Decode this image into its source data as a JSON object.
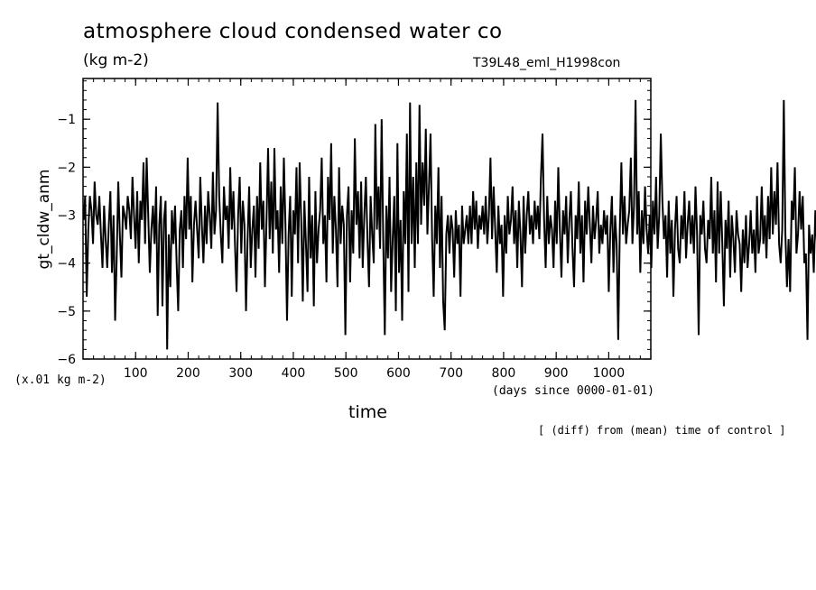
{
  "chart_data": {
    "type": "line",
    "title": "atmosphere cloud condensed water co",
    "subtitle": "(kg m-2)",
    "run_label": "T39L48_eml_H1998con",
    "ylabel": "gt_cldw_anm",
    "yunit": "(x.01 kg m-2)",
    "xlabel": "time",
    "xunit": "(days since 0000-01-01)",
    "note": "[ (diff) from (mean) time of control ]",
    "xlim": [
      0,
      1080
    ],
    "ylim": [
      -6,
      -0.15
    ],
    "xticks": [
      100,
      200,
      300,
      400,
      500,
      600,
      700,
      800,
      900,
      1000
    ],
    "yticks": [
      -6,
      -5,
      -4,
      -3,
      -2,
      -1
    ],
    "series": [
      {
        "color": "#000000",
        "x0": 1,
        "dx": 3,
        "values": [
          -3.1,
          -2.6,
          -4.7,
          -3.3,
          -2.6,
          -2.9,
          -3.6,
          -2.3,
          -3.0,
          -3.2,
          -2.6,
          -3.4,
          -4.1,
          -2.8,
          -3.5,
          -4.1,
          -3.2,
          -2.5,
          -4.2,
          -3.0,
          -5.2,
          -3.9,
          -2.3,
          -3.4,
          -4.3,
          -2.8,
          -3.0,
          -3.3,
          -2.6,
          -2.9,
          -3.5,
          -2.2,
          -3.0,
          -3.7,
          -2.5,
          -4.0,
          -2.7,
          -3.1,
          -1.9,
          -3.6,
          -1.8,
          -3.0,
          -4.2,
          -3.3,
          -2.8,
          -3.6,
          -2.4,
          -5.1,
          -3.2,
          -2.6,
          -4.9,
          -3.1,
          -2.7,
          -5.8,
          -3.4,
          -4.5,
          -2.9,
          -3.6,
          -2.8,
          -4.0,
          -5.0,
          -3.3,
          -2.9,
          -4.1,
          -2.6,
          -3.5,
          -1.8,
          -3.3,
          -2.6,
          -4.4,
          -3.2,
          -2.7,
          -3.3,
          -3.9,
          -2.2,
          -3.2,
          -4.0,
          -2.8,
          -3.6,
          -2.5,
          -3.0,
          -3.7,
          -2.1,
          -3.4,
          -2.9,
          -0.65,
          -2.6,
          -3.4,
          -4.0,
          -2.4,
          -3.1,
          -2.8,
          -3.7,
          -2.0,
          -3.3,
          -2.5,
          -3.6,
          -4.6,
          -3.0,
          -2.2,
          -3.8,
          -2.7,
          -3.2,
          -5.0,
          -3.5,
          -2.4,
          -4.1,
          -3.3,
          -2.8,
          -4.3,
          -2.6,
          -3.7,
          -1.9,
          -3.3,
          -2.7,
          -4.5,
          -3.1,
          -1.6,
          -3.5,
          -2.3,
          -3.8,
          -1.6,
          -3.3,
          -2.9,
          -4.2,
          -2.4,
          -3.6,
          -1.8,
          -3.2,
          -5.2,
          -3.4,
          -2.6,
          -4.7,
          -2.9,
          -3.4,
          -2.0,
          -4.0,
          -1.9,
          -3.1,
          -4.8,
          -2.7,
          -3.6,
          -4.6,
          -2.2,
          -3.9,
          -3.0,
          -4.9,
          -2.5,
          -4.0,
          -3.3,
          -2.9,
          -1.8,
          -3.6,
          -3.0,
          -4.4,
          -2.2,
          -3.1,
          -1.5,
          -3.8,
          -2.6,
          -3.3,
          -4.5,
          -2.0,
          -3.6,
          -2.8,
          -3.2,
          -5.5,
          -3.0,
          -2.4,
          -4.4,
          -2.9,
          -3.8,
          -1.4,
          -3.2,
          -2.5,
          -3.9,
          -2.3,
          -4.1,
          -3.0,
          -2.2,
          -3.5,
          -4.5,
          -2.6,
          -3.4,
          -4.0,
          -1.1,
          -3.3,
          -2.4,
          -3.7,
          -1.0,
          -3.5,
          -5.5,
          -2.8,
          -3.9,
          -2.2,
          -4.6,
          -3.5,
          -2.6,
          -5.0,
          -1.5,
          -4.2,
          -3.1,
          -5.2,
          -2.5,
          -3.6,
          -1.3,
          -4.6,
          -0.65,
          -3.6,
          -2.2,
          -4.1,
          -1.9,
          -3.6,
          -0.7,
          -3.2,
          -1.9,
          -2.8,
          -1.2,
          -3.4,
          -2.4,
          -1.3,
          -3.5,
          -4.7,
          -2.8,
          -3.6,
          -2.0,
          -4.1,
          -2.6,
          -4.8,
          -5.4,
          -3.4,
          -3.0,
          -3.8,
          -3.0,
          -3.3,
          -4.3,
          -2.9,
          -3.6,
          -3.2,
          -4.7,
          -2.8,
          -3.6,
          -3.3,
          -3.0,
          -3.6,
          -2.8,
          -3.6,
          -2.5,
          -3.3,
          -2.7,
          -3.7,
          -3.0,
          -3.3,
          -2.8,
          -3.4,
          -2.6,
          -3.6,
          -3.0,
          -1.8,
          -3.5,
          -2.4,
          -3.3,
          -4.2,
          -2.8,
          -3.6,
          -3.2,
          -4.7,
          -3.0,
          -3.8,
          -2.6,
          -3.4,
          -3.1,
          -2.4,
          -3.6,
          -2.9,
          -4.1,
          -2.7,
          -3.4,
          -4.5,
          -2.6,
          -3.8,
          -3.0,
          -2.5,
          -3.4,
          -3.0,
          -3.6,
          -2.7,
          -3.3,
          -2.8,
          -3.5,
          -2.2,
          -1.3,
          -3.1,
          -4.1,
          -2.6,
          -3.6,
          -3.0,
          -3.3,
          -4.1,
          -2.7,
          -3.6,
          -2.0,
          -3.3,
          -4.3,
          -2.9,
          -3.4,
          -2.6,
          -4.0,
          -3.1,
          -2.5,
          -3.7,
          -4.5,
          -3.0,
          -3.5,
          -2.3,
          -3.8,
          -3.0,
          -4.4,
          -2.7,
          -3.4,
          -2.4,
          -3.2,
          -4.0,
          -2.8,
          -3.5,
          -3.1,
          -2.5,
          -3.8,
          -3.2,
          -3.6,
          -2.9,
          -3.4,
          -3.0,
          -4.6,
          -3.3,
          -2.6,
          -4.2,
          -3.0,
          -3.6,
          -5.6,
          -3.3,
          -1.9,
          -3.4,
          -2.6,
          -3.6,
          -3.2,
          -2.9,
          -1.8,
          -3.6,
          -2.8,
          -0.6,
          -3.4,
          -2.5,
          -4.2,
          -2.9,
          -3.6,
          -2.4,
          -3.3,
          -3.8,
          -3.0,
          -4.1,
          -2.7,
          -3.4,
          -2.2,
          -3.7,
          -3.0,
          -1.3,
          -2.7,
          -3.5,
          -3.0,
          -4.3,
          -2.7,
          -3.8,
          -3.1,
          -4.7,
          -3.3,
          -2.6,
          -3.7,
          -4.0,
          -3.0,
          -3.5,
          -2.5,
          -3.9,
          -3.2,
          -2.7,
          -3.6,
          -3.0,
          -3.8,
          -2.4,
          -3.4,
          -5.5,
          -3.0,
          -3.4,
          -2.7,
          -3.7,
          -4.0,
          -3.1,
          -3.5,
          -2.2,
          -3.8,
          -2.9,
          -4.4,
          -2.3,
          -3.8,
          -2.5,
          -3.6,
          -4.9,
          -3.1,
          -3.7,
          -2.7,
          -4.3,
          -3.0,
          -3.5,
          -4.2,
          -2.9,
          -3.4,
          -3.6,
          -4.6,
          -3.3,
          -4.0,
          -3.0,
          -4.1,
          -3.6,
          -2.9,
          -3.8,
          -3.3,
          -4.2,
          -2.6,
          -3.8,
          -3.5,
          -2.4,
          -3.6,
          -3.0,
          -3.9,
          -2.6,
          -3.5,
          -2.0,
          -3.4,
          -2.5,
          -3.2,
          -1.9,
          -3.6,
          -4.0,
          -3.3,
          -0.6,
          -3.4,
          -4.5,
          -3.5,
          -4.6,
          -2.7,
          -3.1,
          -2.0,
          -3.8,
          -3.4,
          -2.5,
          -3.3,
          -2.6,
          -4.0,
          -3.8,
          -5.6,
          -3.2,
          -3.8,
          -3.4,
          -4.2,
          -2.9,
          -3.6,
          -3.4,
          -4.7,
          -3.1,
          -3.7,
          -2.3,
          -4.0,
          -3.3,
          -4.8,
          -3.4,
          -3.9,
          -2.9,
          -4.4,
          -3.1,
          -4.2,
          -3.0,
          -4.5,
          -3.3,
          -5.2,
          -3.9,
          -3.4,
          -4.8,
          -3.6,
          -4.2,
          -3.1,
          -4.4,
          -3.5,
          -4.6,
          -2.8,
          -3.8,
          -3.6,
          -2.7,
          -4.4,
          -3.2,
          -4.9,
          -4.4,
          -3.5,
          -4.1,
          -3.0,
          -2.6,
          -4.0,
          -3.4,
          -3.0,
          -4.5,
          -3.5,
          -4.1,
          -3.3
        ]
      }
    ]
  }
}
